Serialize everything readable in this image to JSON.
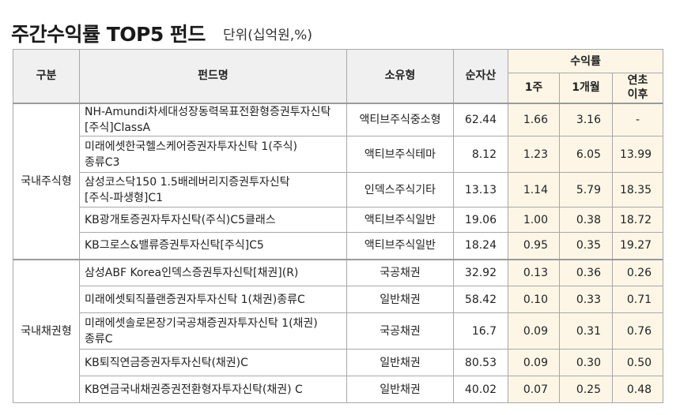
{
  "header": {
    "title": "주간수익률 TOP5 펀드",
    "unit": "단위(십억원,%)"
  },
  "columns": {
    "category": "구분",
    "fund_name": "펀드명",
    "type": "소유형",
    "net_assets": "순자산",
    "returns": "수익률",
    "week1": "1주",
    "month1": "1개월",
    "ytd_line1": "연초",
    "ytd_line2": "이후"
  },
  "groups": [
    {
      "category": "국내주식형",
      "rows": [
        {
          "name_l1": "NH-Amundi차세대성장동력목표전환형증권투자신탁",
          "name_l2": "[주식]ClassA",
          "type": "액티브주식중소형",
          "net_assets": "62.44",
          "week1": "1.66",
          "month1": "3.16",
          "ytd": "-"
        },
        {
          "name_l1": "미래에셋한국헬스케어증권자투자신탁 1(주식)",
          "name_l2": "종류C3",
          "type": "액티브주식테마",
          "net_assets": "8.12",
          "week1": "1.23",
          "month1": "6.05",
          "ytd": "13.99"
        },
        {
          "name_l1": "삼성코스닥150 1.5배레버리지증권투자신탁",
          "name_l2": "[주식-파생형]C1",
          "type": "인덱스주식기타",
          "net_assets": "13.13",
          "week1": "1.14",
          "month1": "5.79",
          "ytd": "18.35"
        },
        {
          "name_l1": "KB광개토증권자투자신탁(주식)C5클래스",
          "name_l2": "",
          "type": "액티브주식일반",
          "net_assets": "19.06",
          "week1": "1.00",
          "month1": "0.38",
          "ytd": "18.72"
        },
        {
          "name_l1": "KB그로스&밸류증권투자신탁[주식]C5",
          "name_l2": "",
          "type": "액티브주식일반",
          "net_assets": "18.24",
          "week1": "0.95",
          "month1": "0.35",
          "ytd": "19.27"
        }
      ]
    },
    {
      "category": "국내채권형",
      "rows": [
        {
          "name_l1": "삼성ABF Korea인덱스증권투자신탁[채권](R)",
          "name_l2": "",
          "type": "국공채권",
          "net_assets": "32.92",
          "week1": "0.13",
          "month1": "0.36",
          "ytd": "0.26"
        },
        {
          "name_l1": "미래에셋퇴직플랜증권자투자신탁 1(채권)종류C",
          "name_l2": "",
          "type": "일반채권",
          "net_assets": "58.42",
          "week1": "0.10",
          "month1": "0.33",
          "ytd": "0.71"
        },
        {
          "name_l1": "미래에셋솔로몬장기국공채증권자투자신탁 1(채권)",
          "name_l2": "종류C",
          "type": "국공채권",
          "net_assets": "16.7",
          "week1": "0.09",
          "month1": "0.31",
          "ytd": "0.76"
        },
        {
          "name_l1": "KB퇴직연금증권자투자신탁(채권)C",
          "name_l2": "",
          "type": "일반채권",
          "net_assets": "80.53",
          "week1": "0.09",
          "month1": "0.30",
          "ytd": "0.50"
        },
        {
          "name_l1": "KB연금국내채권증권전환형자투자신탁(채권) C",
          "name_l2": "",
          "type": "일반채권",
          "net_assets": "40.02",
          "week1": "0.07",
          "month1": "0.25",
          "ytd": "0.48"
        }
      ]
    }
  ]
}
